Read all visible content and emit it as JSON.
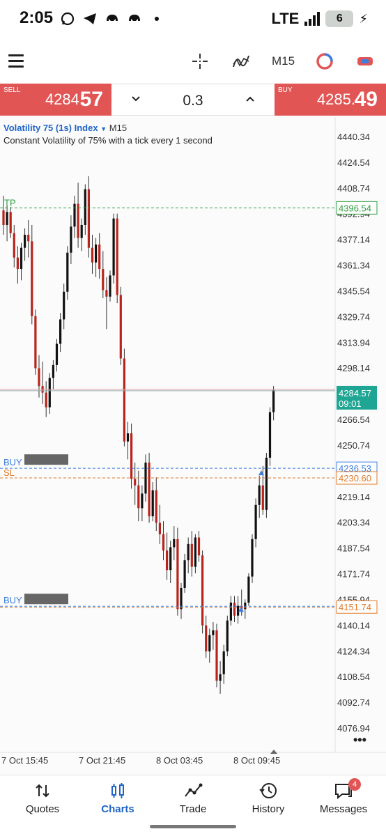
{
  "status_bar": {
    "time": "2:05",
    "network": "LTE",
    "battery": "6"
  },
  "toolbar": {
    "timeframe": "M15"
  },
  "trade": {
    "sell_label": "SELL",
    "sell_price_main": "4284.",
    "sell_price_big": "57",
    "buy_label": "BUY",
    "buy_price_main": "4285.",
    "buy_price_big": "49",
    "volume": "0.3"
  },
  "chart": {
    "symbol": "Volatility 75 (1s) Index",
    "timeframe": "M15",
    "description": "Constant Volatility of 75% with a tick every 1 second",
    "current_price": "4284.57",
    "current_time": "09:01",
    "tp_label": "TP",
    "tp_price": "4396.54",
    "buy1_label": "BUY",
    "buy1_price": "4236.53",
    "sl_label": "SL",
    "sl_price": "4230.60",
    "buy2_label": "BUY",
    "buy2_price": "4151.74"
  },
  "chart_data": {
    "type": "candlestick",
    "y_ticks": [
      "4440.34",
      "4424.54",
      "4408.74",
      "4392.94",
      "4377.14",
      "4361.34",
      "4345.54",
      "4329.74",
      "4313.94",
      "4298.14",
      "4266.54",
      "4250.74",
      "4219.14",
      "4203.34",
      "4187.54",
      "4171.74",
      "4155.94",
      "4140.14",
      "4124.34",
      "4108.54",
      "4092.74",
      "4076.94"
    ],
    "x_ticks": [
      "7 Oct 15:45",
      "7 Oct 21:45",
      "8 Oct 03:45",
      "8 Oct 09:45"
    ],
    "ylim": [
      4070,
      4448
    ],
    "colors": {
      "bull": "#111111",
      "bear": "#b8241c",
      "tp": "#2e9e3e",
      "buy": "#3c7de0",
      "sl": "#e07a2a",
      "current": "#1fa593"
    },
    "candles": [
      {
        "o": 4395,
        "h": 4404,
        "l": 4380,
        "c": 4386
      },
      {
        "o": 4386,
        "h": 4398,
        "l": 4376,
        "c": 4394
      },
      {
        "o": 4394,
        "h": 4397,
        "l": 4378,
        "c": 4381
      },
      {
        "o": 4381,
        "h": 4386,
        "l": 4360,
        "c": 4366
      },
      {
        "o": 4366,
        "h": 4373,
        "l": 4350,
        "c": 4359
      },
      {
        "o": 4359,
        "h": 4375,
        "l": 4352,
        "c": 4372
      },
      {
        "o": 4372,
        "h": 4384,
        "l": 4364,
        "c": 4380
      },
      {
        "o": 4380,
        "h": 4389,
        "l": 4366,
        "c": 4376
      },
      {
        "o": 4376,
        "h": 4386,
        "l": 4325,
        "c": 4330
      },
      {
        "o": 4330,
        "h": 4334,
        "l": 4294,
        "c": 4298
      },
      {
        "o": 4298,
        "h": 4306,
        "l": 4280,
        "c": 4287
      },
      {
        "o": 4287,
        "h": 4302,
        "l": 4276,
        "c": 4283
      },
      {
        "o": 4283,
        "h": 4290,
        "l": 4268,
        "c": 4274
      },
      {
        "o": 4274,
        "h": 4295,
        "l": 4270,
        "c": 4292
      },
      {
        "o": 4292,
        "h": 4303,
        "l": 4285,
        "c": 4300
      },
      {
        "o": 4300,
        "h": 4316,
        "l": 4296,
        "c": 4313
      },
      {
        "o": 4313,
        "h": 4332,
        "l": 4308,
        "c": 4328
      },
      {
        "o": 4328,
        "h": 4350,
        "l": 4322,
        "c": 4345
      },
      {
        "o": 4345,
        "h": 4373,
        "l": 4340,
        "c": 4369
      },
      {
        "o": 4369,
        "h": 4392,
        "l": 4362,
        "c": 4385
      },
      {
        "o": 4385,
        "h": 4404,
        "l": 4378,
        "c": 4399
      },
      {
        "o": 4399,
        "h": 4412,
        "l": 4372,
        "c": 4378
      },
      {
        "o": 4378,
        "h": 4390,
        "l": 4370,
        "c": 4386
      },
      {
        "o": 4386,
        "h": 4411,
        "l": 4380,
        "c": 4408
      },
      {
        "o": 4408,
        "h": 4416,
        "l": 4366,
        "c": 4372
      },
      {
        "o": 4372,
        "h": 4380,
        "l": 4356,
        "c": 4363
      },
      {
        "o": 4363,
        "h": 4378,
        "l": 4354,
        "c": 4374
      },
      {
        "o": 4374,
        "h": 4381,
        "l": 4353,
        "c": 4359
      },
      {
        "o": 4359,
        "h": 4370,
        "l": 4341,
        "c": 4346
      },
      {
        "o": 4346,
        "h": 4354,
        "l": 4322,
        "c": 4342
      },
      {
        "o": 4342,
        "h": 4358,
        "l": 4339,
        "c": 4355
      },
      {
        "o": 4355,
        "h": 4393,
        "l": 4350,
        "c": 4390
      },
      {
        "o": 4390,
        "h": 4393,
        "l": 4338,
        "c": 4343
      },
      {
        "o": 4343,
        "h": 4348,
        "l": 4300,
        "c": 4304
      },
      {
        "o": 4304,
        "h": 4310,
        "l": 4250,
        "c": 4253
      },
      {
        "o": 4253,
        "h": 4265,
        "l": 4242,
        "c": 4258
      },
      {
        "o": 4258,
        "h": 4264,
        "l": 4224,
        "c": 4230
      },
      {
        "o": 4230,
        "h": 4240,
        "l": 4214,
        "c": 4226
      },
      {
        "o": 4226,
        "h": 4235,
        "l": 4204,
        "c": 4212
      },
      {
        "o": 4212,
        "h": 4226,
        "l": 4204,
        "c": 4221
      },
      {
        "o": 4221,
        "h": 4245,
        "l": 4216,
        "c": 4240
      },
      {
        "o": 4240,
        "h": 4246,
        "l": 4203,
        "c": 4207
      },
      {
        "o": 4207,
        "h": 4228,
        "l": 4204,
        "c": 4223
      },
      {
        "o": 4223,
        "h": 4231,
        "l": 4198,
        "c": 4203
      },
      {
        "o": 4203,
        "h": 4214,
        "l": 4190,
        "c": 4196
      },
      {
        "o": 4196,
        "h": 4204,
        "l": 4180,
        "c": 4186
      },
      {
        "o": 4186,
        "h": 4197,
        "l": 4168,
        "c": 4174
      },
      {
        "o": 4174,
        "h": 4192,
        "l": 4166,
        "c": 4188
      },
      {
        "o": 4188,
        "h": 4201,
        "l": 4180,
        "c": 4193
      },
      {
        "o": 4193,
        "h": 4200,
        "l": 4146,
        "c": 4150
      },
      {
        "o": 4150,
        "h": 4166,
        "l": 4144,
        "c": 4163
      },
      {
        "o": 4163,
        "h": 4184,
        "l": 4160,
        "c": 4180
      },
      {
        "o": 4180,
        "h": 4194,
        "l": 4172,
        "c": 4190
      },
      {
        "o": 4190,
        "h": 4198,
        "l": 4170,
        "c": 4176
      },
      {
        "o": 4176,
        "h": 4196,
        "l": 4172,
        "c": 4194
      },
      {
        "o": 4194,
        "h": 4198,
        "l": 4179,
        "c": 4183
      },
      {
        "o": 4183,
        "h": 4186,
        "l": 4135,
        "c": 4140
      },
      {
        "o": 4140,
        "h": 4146,
        "l": 4120,
        "c": 4124
      },
      {
        "o": 4124,
        "h": 4138,
        "l": 4117,
        "c": 4134
      },
      {
        "o": 4134,
        "h": 4142,
        "l": 4125,
        "c": 4137
      },
      {
        "o": 4137,
        "h": 4141,
        "l": 4102,
        "c": 4106
      },
      {
        "o": 4106,
        "h": 4118,
        "l": 4098,
        "c": 4110
      },
      {
        "o": 4110,
        "h": 4128,
        "l": 4104,
        "c": 4124
      },
      {
        "o": 4124,
        "h": 4146,
        "l": 4121,
        "c": 4143
      },
      {
        "o": 4143,
        "h": 4158,
        "l": 4140,
        "c": 4154
      },
      {
        "o": 4154,
        "h": 4158,
        "l": 4142,
        "c": 4146
      },
      {
        "o": 4146,
        "h": 4158,
        "l": 4141,
        "c": 4152
      },
      {
        "o": 4152,
        "h": 4162,
        "l": 4146,
        "c": 4150
      },
      {
        "o": 4150,
        "h": 4156,
        "l": 4144,
        "c": 4154
      },
      {
        "o": 4154,
        "h": 4172,
        "l": 4152,
        "c": 4170
      },
      {
        "o": 4170,
        "h": 4196,
        "l": 4166,
        "c": 4193
      },
      {
        "o": 4193,
        "h": 4218,
        "l": 4188,
        "c": 4214
      },
      {
        "o": 4214,
        "h": 4232,
        "l": 4206,
        "c": 4226
      },
      {
        "o": 4226,
        "h": 4238,
        "l": 4208,
        "c": 4211
      },
      {
        "o": 4211,
        "h": 4246,
        "l": 4206,
        "c": 4243
      },
      {
        "o": 4243,
        "h": 4274,
        "l": 4238,
        "c": 4271
      },
      {
        "o": 4271,
        "h": 4287,
        "l": 4266,
        "c": 4284.57
      }
    ]
  },
  "nav": {
    "items": [
      {
        "label": "Quotes"
      },
      {
        "label": "Charts"
      },
      {
        "label": "Trade"
      },
      {
        "label": "History"
      },
      {
        "label": "Messages"
      }
    ],
    "messages_badge": "4"
  }
}
